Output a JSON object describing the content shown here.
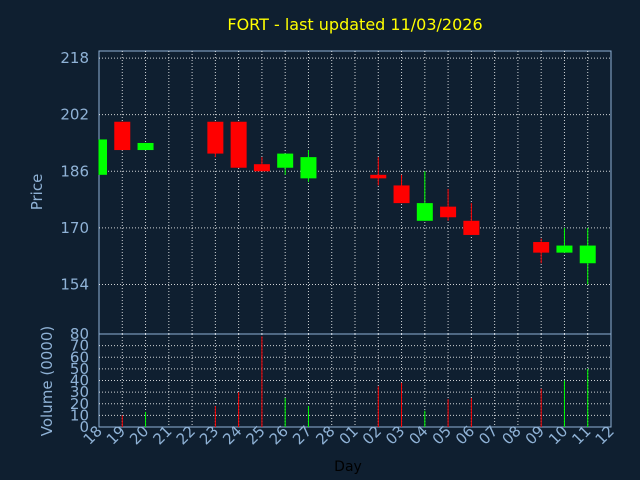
{
  "chart_data": {
    "type": "candlestick",
    "title": "FORT - last updated 11/03/2026",
    "xlabel": "Day",
    "price_axis": {
      "label": "Price",
      "ticks": [
        218,
        202,
        186,
        170,
        154
      ],
      "ylim": [
        140,
        220
      ]
    },
    "volume_axis": {
      "label": "Volume (0000)",
      "ticks": [
        80,
        70,
        60,
        50,
        40,
        30,
        20,
        10,
        0
      ],
      "ylim": [
        0,
        80
      ]
    },
    "x_ticks": [
      "18",
      "19",
      "20",
      "21",
      "22",
      "23",
      "24",
      "25",
      "26",
      "27",
      "28",
      "01",
      "02",
      "03",
      "04",
      "05",
      "06",
      "07",
      "08",
      "09",
      "10",
      "11",
      "12"
    ],
    "candles": [
      {
        "day": "18",
        "open": 185,
        "close": 195,
        "high": 195,
        "low": 185,
        "volume": 0
      },
      {
        "day": "19",
        "open": 200,
        "close": 192,
        "high": 200,
        "low": 192,
        "volume": 10
      },
      {
        "day": "20",
        "open": 192,
        "close": 194,
        "high": 194,
        "low": 192,
        "volume": 13
      },
      {
        "day": "23",
        "open": 200,
        "close": 191,
        "high": 200,
        "low": 190,
        "volume": 18
      },
      {
        "day": "24",
        "open": 200,
        "close": 187,
        "high": 200,
        "low": 187,
        "volume": 30
      },
      {
        "day": "25",
        "open": 188,
        "close": 186,
        "high": 190,
        "low": 186,
        "volume": 78
      },
      {
        "day": "26",
        "open": 187,
        "close": 191,
        "high": 191,
        "low": 185,
        "volume": 25
      },
      {
        "day": "27",
        "open": 184,
        "close": 190,
        "high": 192,
        "low": 183,
        "volume": 18
      },
      {
        "day": "02",
        "open": 185,
        "close": 184,
        "high": 190,
        "low": 182,
        "volume": 35
      },
      {
        "day": "03",
        "open": 182,
        "close": 177,
        "high": 185,
        "low": 177,
        "volume": 38
      },
      {
        "day": "04",
        "open": 172,
        "close": 177,
        "high": 186,
        "low": 172,
        "volume": 14
      },
      {
        "day": "05",
        "open": 176,
        "close": 173,
        "high": 181,
        "low": 172,
        "volume": 24
      },
      {
        "day": "06",
        "open": 172,
        "close": 168,
        "high": 177,
        "low": 168,
        "volume": 25
      },
      {
        "day": "09",
        "open": 166,
        "close": 163,
        "high": 167,
        "low": 160,
        "volume": 33
      },
      {
        "day": "10",
        "open": 163,
        "close": 165,
        "high": 170,
        "low": 163,
        "volume": 40
      },
      {
        "day": "11",
        "open": 160,
        "close": 165,
        "high": 170,
        "low": 154,
        "volume": 50
      }
    ],
    "up_color": "#00ff00",
    "down_color": "#ff0000",
    "grid": true,
    "legend": "none"
  },
  "colors": {
    "background": "#0f1f30",
    "title": "#ffff00",
    "axis_text": "#8fb2d6",
    "grid": "#ffffff",
    "frame": "#8fb2d6"
  }
}
